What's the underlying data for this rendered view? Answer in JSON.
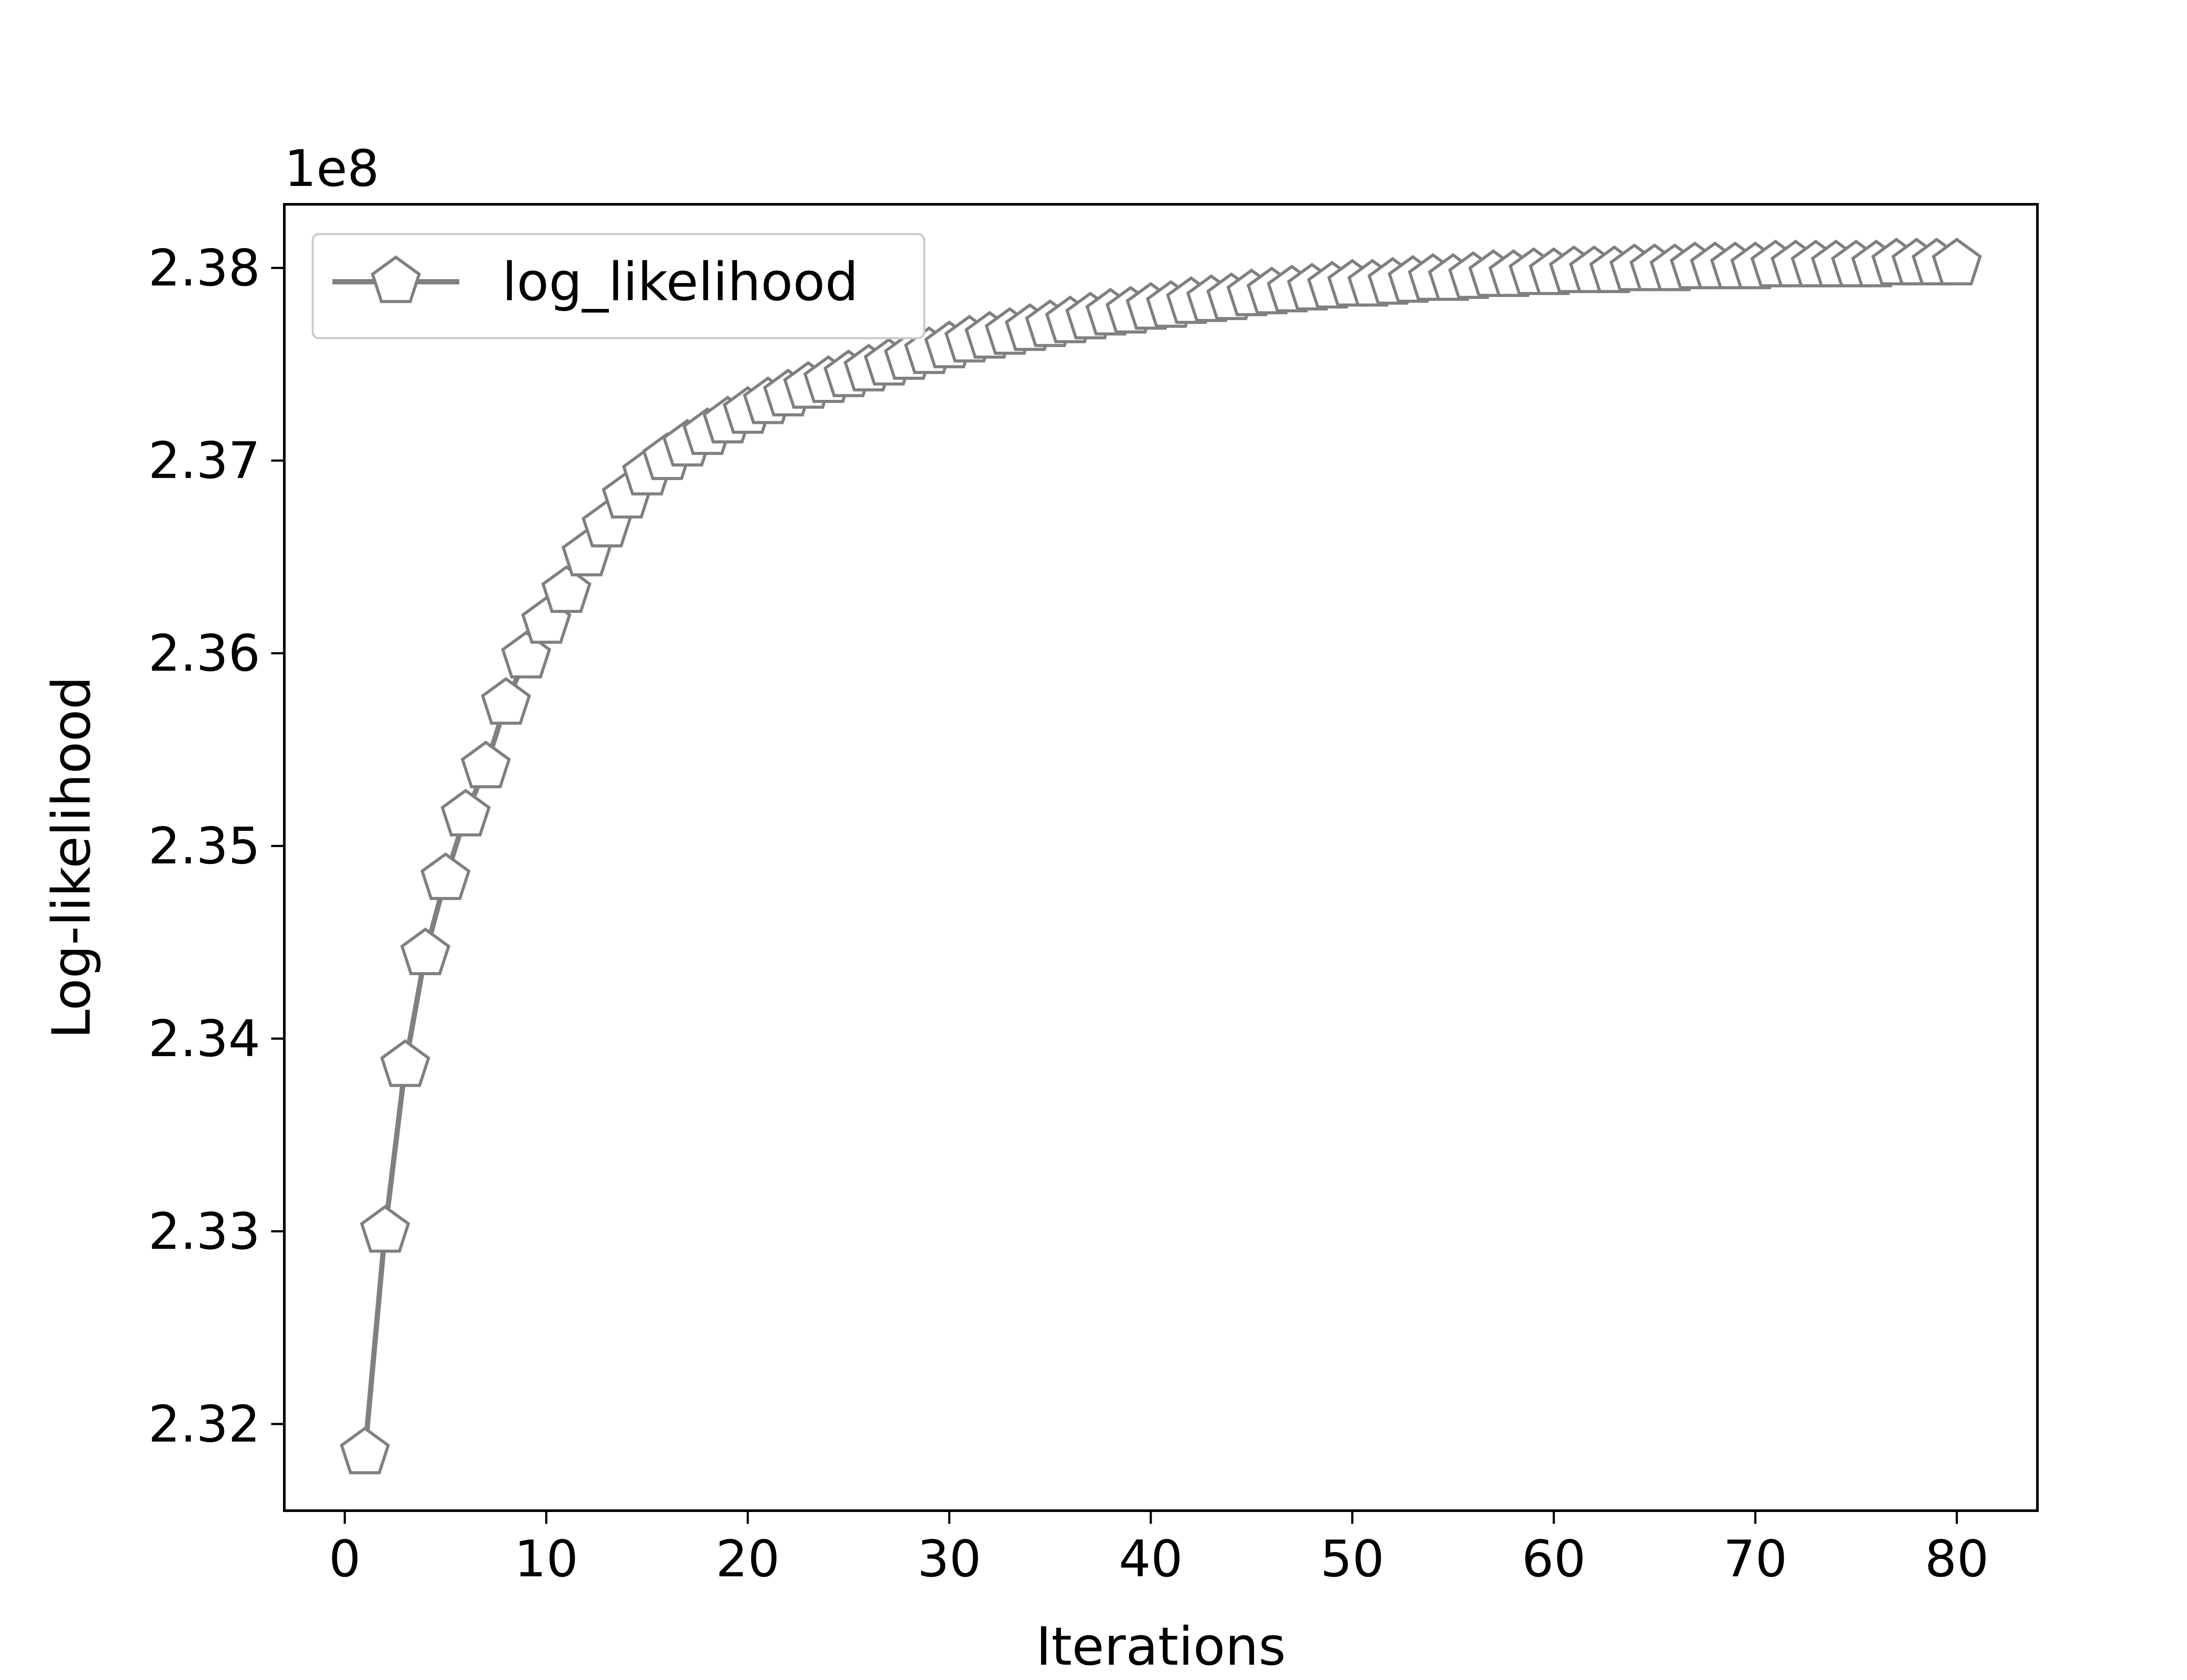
{
  "chart_data": {
    "type": "line",
    "xlabel": "Iterations",
    "ylabel": "Log-likelihood",
    "offset_label": "1e8",
    "xlim": [
      -3,
      84
    ],
    "ylim": [
      2.3155,
      2.3833
    ],
    "xticks": [
      0,
      10,
      20,
      30,
      40,
      50,
      60,
      70,
      80
    ],
    "yticks": [
      2.32,
      2.33,
      2.34,
      2.35,
      2.36,
      2.37,
      2.38
    ],
    "ytick_labels": [
      "2.32",
      "2.33",
      "2.34",
      "2.35",
      "2.36",
      "2.37",
      "2.38"
    ],
    "grid": false,
    "legend": {
      "position": "top-left",
      "entries": [
        "log_likelihood"
      ]
    },
    "series": [
      {
        "name": "log_likelihood",
        "color": "#808080",
        "marker": "pentagon",
        "x": [
          1,
          2,
          3,
          4,
          5,
          6,
          7,
          8,
          9,
          10,
          11,
          12,
          13,
          14,
          15,
          16,
          17,
          18,
          19,
          20,
          21,
          22,
          23,
          24,
          25,
          26,
          27,
          28,
          29,
          30,
          31,
          32,
          33,
          34,
          35,
          36,
          37,
          38,
          39,
          40,
          41,
          42,
          43,
          44,
          45,
          46,
          47,
          48,
          49,
          50,
          51,
          52,
          53,
          54,
          55,
          56,
          57,
          58,
          59,
          60,
          61,
          62,
          63,
          64,
          65,
          66,
          67,
          68,
          69,
          70,
          71,
          72,
          73,
          74,
          75,
          76,
          77,
          78,
          79,
          80
        ],
        "y": [
          2.3185,
          2.33,
          2.3386,
          2.3444,
          2.3483,
          2.3516,
          2.3541,
          2.3574,
          2.3598,
          2.3616,
          2.3632,
          2.3651,
          2.3666,
          2.3681,
          2.3693,
          2.3701,
          2.3708,
          2.3714,
          2.372,
          2.3725,
          2.373,
          2.3734,
          2.3738,
          2.3741,
          2.3744,
          2.3747,
          2.375,
          2.3753,
          2.3756,
          2.3759,
          2.3762,
          2.3764,
          2.3766,
          2.3768,
          2.377,
          2.3772,
          2.3774,
          2.3776,
          2.3777,
          2.3779,
          2.378,
          2.3782,
          2.3783,
          2.3784,
          2.3786,
          2.3787,
          2.3788,
          2.3789,
          2.379,
          2.3791,
          2.3791,
          2.3792,
          2.3793,
          2.3794,
          2.3794,
          2.3795,
          2.3796,
          2.3796,
          2.3797,
          2.3797,
          2.3798,
          2.3798,
          2.3798,
          2.3799,
          2.3799,
          2.3799,
          2.38,
          2.38,
          2.38,
          2.38,
          2.3801,
          2.3801,
          2.3801,
          2.3801,
          2.3801,
          2.3801,
          2.3802,
          2.3802,
          2.3802,
          2.3802
        ]
      }
    ]
  }
}
